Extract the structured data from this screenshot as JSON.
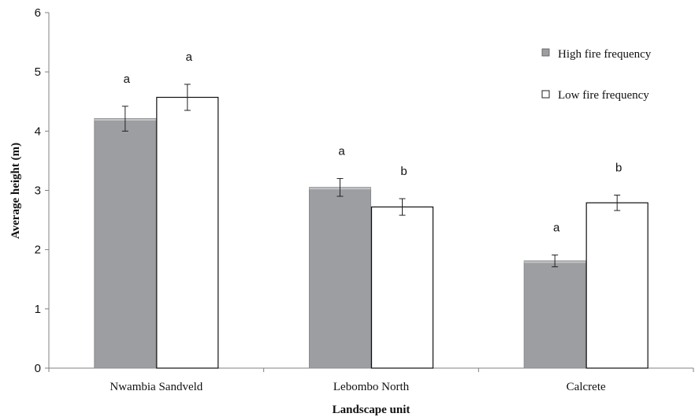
{
  "chart_data": {
    "type": "bar",
    "categories": [
      "Nwambia Sandveld",
      "Lebombo North",
      "Calcrete"
    ],
    "series": [
      {
        "name": "High fire frequency",
        "values": [
          4.21,
          3.05,
          1.81
        ],
        "errors": [
          0.21,
          0.15,
          0.1
        ],
        "labels": [
          "a",
          "a",
          "a"
        ],
        "color": "#9d9ea1"
      },
      {
        "name": "Low fire frequency",
        "values": [
          4.57,
          2.72,
          2.79
        ],
        "errors": [
          0.22,
          0.14,
          0.13
        ],
        "labels": [
          "a",
          "b",
          "b"
        ],
        "color": "#ffffff"
      }
    ],
    "xlabel": "Landscape unit",
    "ylabel": "Average height (m)",
    "ylim": [
      0,
      6
    ],
    "yticks": [
      "0",
      "1",
      "2",
      "3",
      "4",
      "5",
      "6"
    ],
    "grid": false,
    "legend_position": "top-right"
  }
}
